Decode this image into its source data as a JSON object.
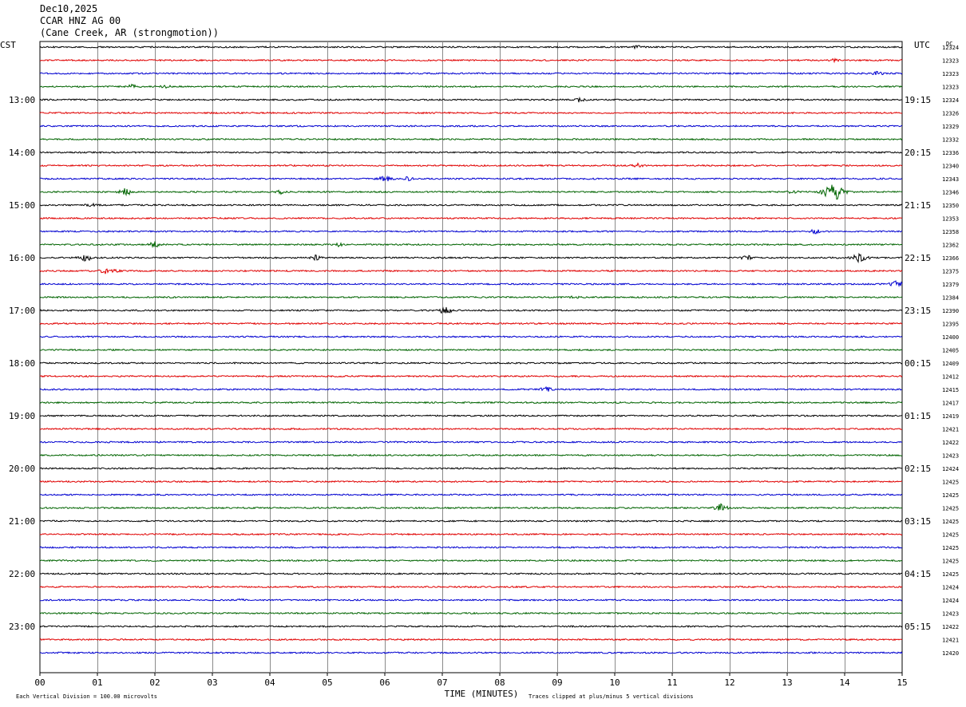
{
  "header": {
    "date": "Dec10,2025",
    "station": "CCAR HNZ AG 00",
    "location": "(Cane Creek, AR (strongmotion))"
  },
  "chart_data": {
    "type": "line",
    "title": "",
    "left_axis_label": "CST",
    "right_axis_label": "UTC",
    "dc_label": "DC",
    "xlabel": "TIME (MINUTES)",
    "x_ticks": [
      "00",
      "01",
      "02",
      "03",
      "04",
      "05",
      "06",
      "07",
      "08",
      "09",
      "10",
      "11",
      "12",
      "13",
      "14",
      "15"
    ],
    "xlim": [
      0,
      15
    ],
    "left_hour_labels": [
      "13:00",
      "14:00",
      "15:00",
      "16:00",
      "17:00",
      "18:00",
      "19:00",
      "20:00",
      "21:00",
      "22:00",
      "23:00"
    ],
    "right_hour_labels": [
      "19:15",
      "20:15",
      "21:15",
      "22:15",
      "23:15",
      "00:15",
      "01:15",
      "02:15",
      "03:15",
      "04:15",
      "05:15"
    ],
    "dc_offsets": [
      12324,
      12323,
      12323,
      12323,
      12324,
      12326,
      12329,
      12332,
      12336,
      12340,
      12343,
      12346,
      12350,
      12353,
      12358,
      12362,
      12366,
      12375,
      12379,
      12384,
      12390,
      12395,
      12400,
      12405,
      12409,
      12412,
      12415,
      12417,
      12419,
      12421,
      12422,
      12423,
      12424,
      12425,
      12425,
      12425,
      12425,
      12425,
      12425,
      12425,
      12425,
      12424,
      12424,
      12423,
      12422,
      12421,
      12420
    ],
    "trace_colors": [
      "#000000",
      "#e00000",
      "#0000d0",
      "#006400"
    ],
    "events": [
      {
        "trace": 0,
        "minute": 10.4,
        "amp": 3
      },
      {
        "trace": 1,
        "minute": 13.8,
        "amp": 3
      },
      {
        "trace": 2,
        "minute": 14.6,
        "amp": 4
      },
      {
        "trace": 3,
        "minute": 1.6,
        "amp": 3
      },
      {
        "trace": 3,
        "minute": 2.2,
        "amp": 3
      },
      {
        "trace": 4,
        "minute": 9.4,
        "amp": 4
      },
      {
        "trace": 9,
        "minute": 10.4,
        "amp": 3
      },
      {
        "trace": 10,
        "minute": 6.0,
        "amp": 6
      },
      {
        "trace": 10,
        "minute": 6.4,
        "amp": 4
      },
      {
        "trace": 11,
        "minute": 1.5,
        "amp": 6
      },
      {
        "trace": 11,
        "minute": 4.2,
        "amp": 3
      },
      {
        "trace": 11,
        "minute": 13.1,
        "amp": 3
      },
      {
        "trace": 11,
        "minute": 13.8,
        "amp": 18
      },
      {
        "trace": 12,
        "minute": 0.9,
        "amp": 3
      },
      {
        "trace": 14,
        "minute": 13.5,
        "amp": 4
      },
      {
        "trace": 15,
        "minute": 2.0,
        "amp": 5
      },
      {
        "trace": 15,
        "minute": 5.2,
        "amp": 3
      },
      {
        "trace": 16,
        "minute": 0.8,
        "amp": 6
      },
      {
        "trace": 16,
        "minute": 4.8,
        "amp": 4
      },
      {
        "trace": 16,
        "minute": 12.3,
        "amp": 4
      },
      {
        "trace": 16,
        "minute": 14.25,
        "amp": 7
      },
      {
        "trace": 17,
        "minute": 1.2,
        "amp": 7
      },
      {
        "trace": 18,
        "minute": 14.9,
        "amp": 5
      },
      {
        "trace": 19,
        "minute": 9.3,
        "amp": 3
      },
      {
        "trace": 20,
        "minute": 7.05,
        "amp": 6
      },
      {
        "trace": 26,
        "minute": 8.8,
        "amp": 4
      },
      {
        "trace": 35,
        "minute": 11.85,
        "amp": 6
      },
      {
        "trace": 42,
        "minute": 3.5,
        "amp": 2
      }
    ]
  },
  "footer": {
    "scale_note": "Each Vertical Division = 100.00 microvolts",
    "clip_note": "Traces clipped at plus/minus 5 vertical divisions"
  }
}
